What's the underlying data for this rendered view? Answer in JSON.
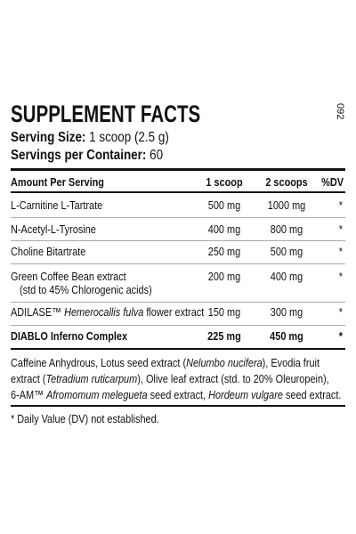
{
  "header": {
    "title": "SUPPLEMENT FACTS",
    "side_code": "092"
  },
  "serving": {
    "size_label": "Serving Size:",
    "size_value": "1 scoop (2.5 g)",
    "per_container_label": "Servings per Container:",
    "per_container_value": "60"
  },
  "table": {
    "columns": [
      "Amount Per Serving",
      "1 scoop",
      "2 scoops",
      "%DV"
    ],
    "rows": [
      {
        "name": "L-Carnitine L-Tartrate",
        "one": "500 mg",
        "two": "1000 mg",
        "dv": "*"
      },
      {
        "name": "N-Acetyl-L-Tyrosine",
        "one": "400 mg",
        "two": "800 mg",
        "dv": "*"
      },
      {
        "name": "Choline Bitartrate",
        "one": "250 mg",
        "two": "500 mg",
        "dv": "*"
      },
      {
        "name": "Green Coffee Bean extract",
        "sub": "(std to 45% Chlorogenic acids)",
        "one": "200 mg",
        "two": "400 mg",
        "dv": "*"
      },
      {
        "name": [
          "ADILASE™ ",
          "Hemerocallis fulva",
          " flower extract"
        ],
        "one": "150 mg",
        "two": "300 mg",
        "dv": "*"
      },
      {
        "name": "DIABLO Inferno Complex",
        "one": "225 mg",
        "two": "450 mg",
        "dv": "*"
      }
    ]
  },
  "ingredients": [
    [
      "Caffeine Anhydrous, Lotus seed extract (",
      "Nelumbo nucifera",
      "), Evodia fruit"
    ],
    [
      "extract (",
      "Tetradium ruticarpum",
      "), Olive leaf extract (std. to 20% Oleuropein),"
    ],
    [
      "6-AM™ ",
      "Afromomum melegueta",
      " seed extract, ",
      "Hordeum vulgare",
      " seed extract."
    ]
  ],
  "footnote": "* Daily Value (DV) not established."
}
